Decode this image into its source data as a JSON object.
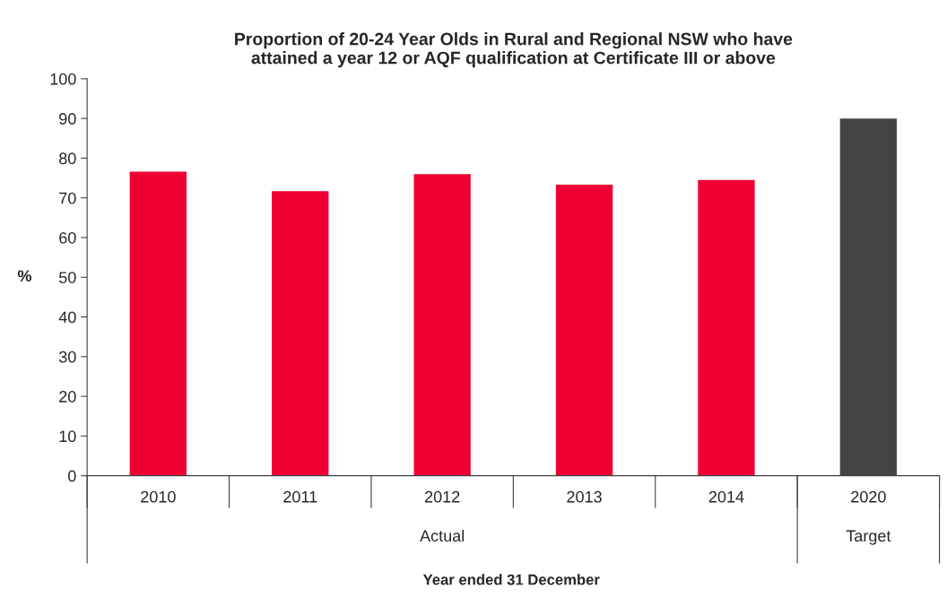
{
  "chart_data": {
    "type": "bar",
    "title": "Proportion of 20-24 Year Olds in Rural and Regional NSW who have\nattained a year 12 or AQF qualification at Certificate III or above",
    "categories": [
      "2010",
      "2011",
      "2012",
      "2013",
      "2014",
      "2020"
    ],
    "values": [
      76.6,
      71.7,
      76.0,
      73.3,
      74.5,
      90
    ],
    "colors": [
      "#ee0033",
      "#ee0033",
      "#ee0033",
      "#ee0033",
      "#ee0033",
      "#444444"
    ],
    "ylim": [
      0,
      100
    ],
    "yticks": [
      0,
      10,
      20,
      30,
      40,
      50,
      60,
      70,
      80,
      90,
      100
    ],
    "ylabel": "%",
    "xlabel": "Year ended 31 December",
    "annotations": [
      "Actual",
      "Target"
    ],
    "grid": false,
    "legend": false
  }
}
